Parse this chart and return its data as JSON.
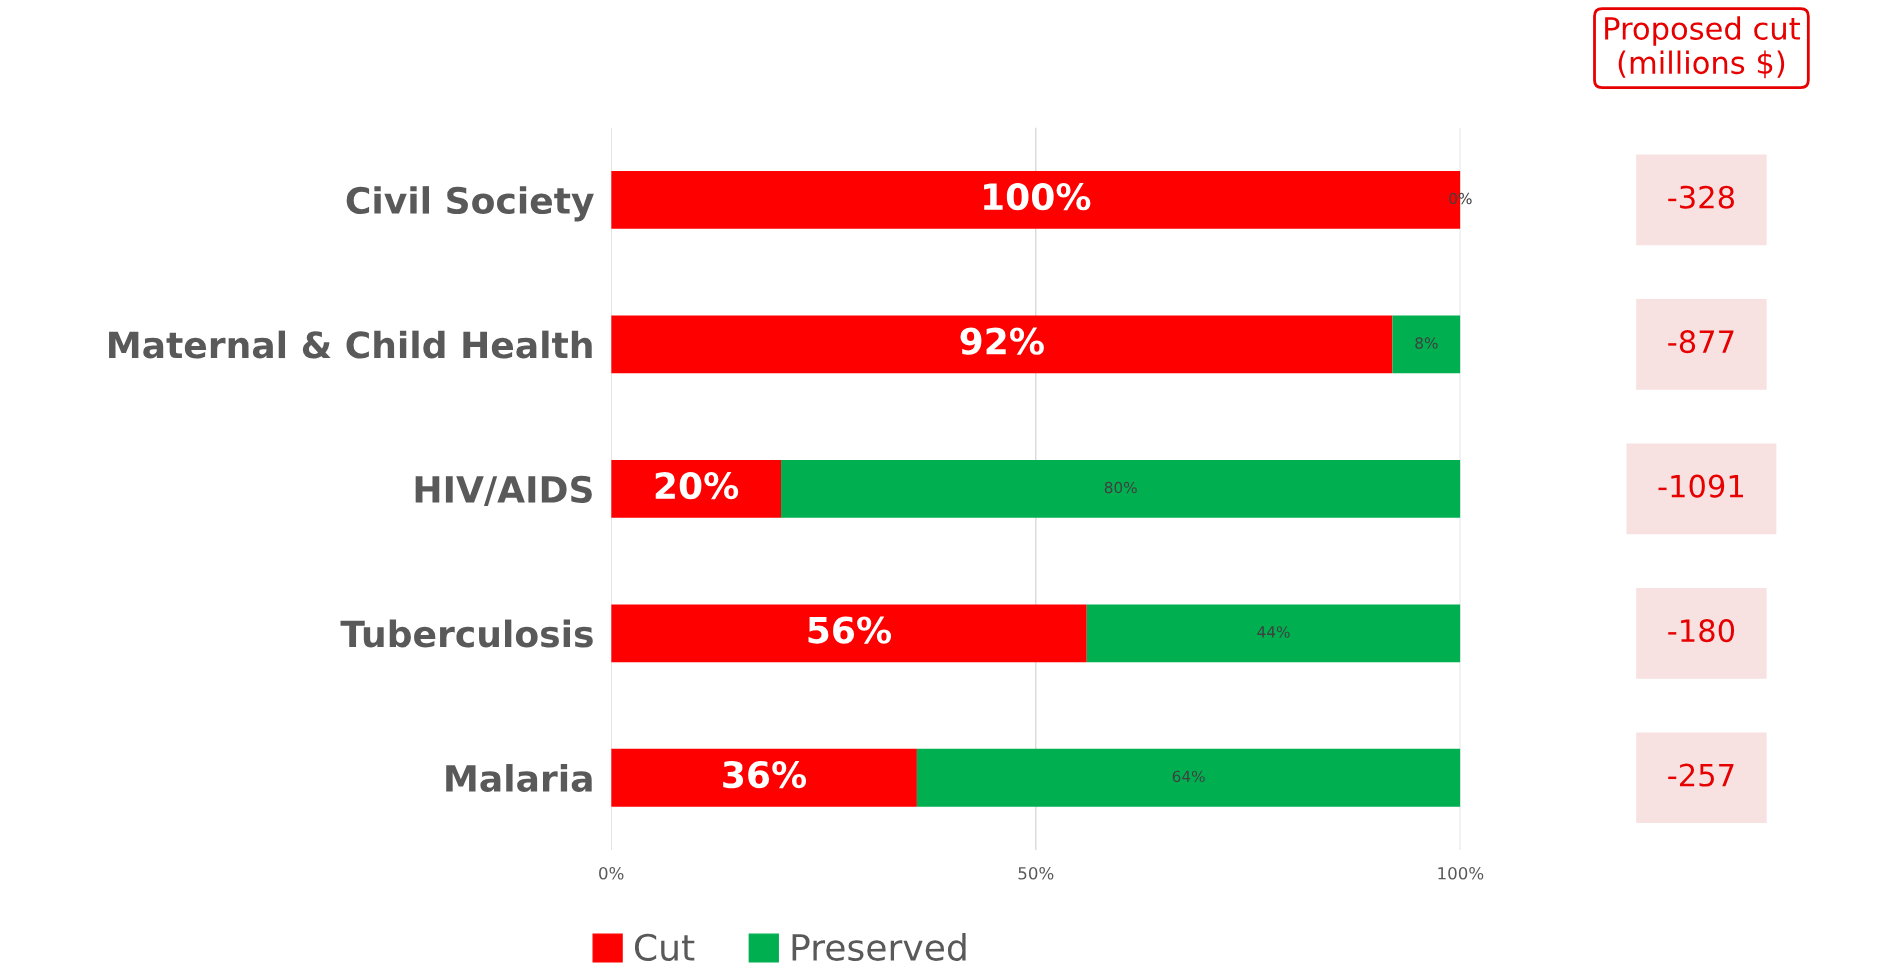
{
  "chart_data": [
    {
      "type": "bar",
      "orientation": "horizontal",
      "stacked": true,
      "categories": [
        "Civil Society",
        "Maternal & Child Health",
        "HIV/AIDS",
        "Tuberculosis",
        "Malaria"
      ],
      "series": [
        {
          "name": "Cut",
          "color": "#ff0000",
          "values": [
            100,
            92,
            20,
            56,
            36
          ],
          "value_labels": [
            "100%",
            "92%",
            "20%",
            "56%",
            "36%"
          ]
        },
        {
          "name": "Preserved",
          "color": "#00b050",
          "values": [
            0,
            8,
            80,
            44,
            64
          ],
          "value_labels": [
            "0%",
            "8%",
            "80%",
            "44%",
            "64%"
          ]
        }
      ],
      "xlim": [
        0,
        100
      ],
      "xticks": [
        {
          "value": 0,
          "label": "0%"
        },
        {
          "value": 50,
          "label": "50%"
        },
        {
          "value": 100,
          "label": "100%"
        }
      ],
      "grid": "x",
      "legend": "bottom"
    },
    {
      "type": "other",
      "title": "Proposed cut\n(millions $)",
      "annotations": [
        "-328",
        "-877",
        "-1091",
        "-180",
        "-257"
      ]
    }
  ]
}
